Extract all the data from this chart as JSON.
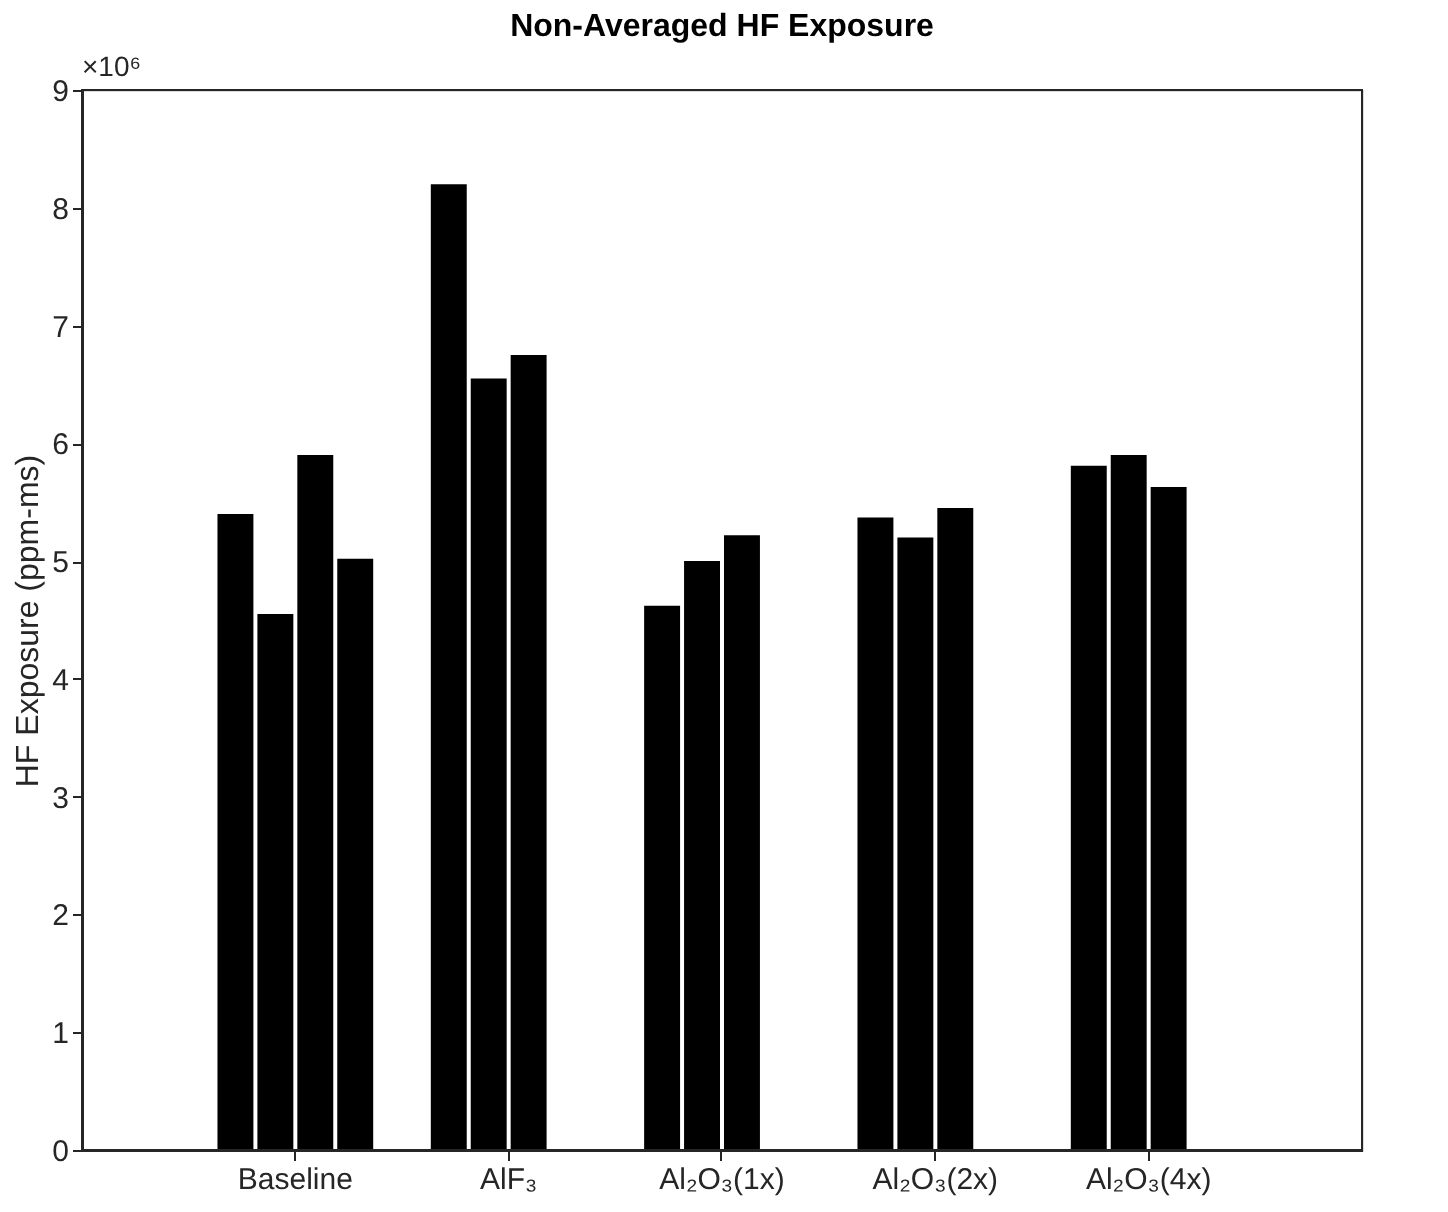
{
  "chart_data": {
    "type": "bar",
    "title": "Non-Averaged HF Exposure",
    "ylabel": "HF Exposure (ppm-ms)",
    "categories": [
      "Baseline",
      "AlF₃",
      "Al₂O₃(1x)",
      "Al₂O₃(2x)",
      "Al₂O₃(4x)"
    ],
    "series": [
      {
        "color": "#000000",
        "values": [
          5.4,
          8.2,
          4.62,
          5.37,
          5.81
        ]
      },
      {
        "color": "#000000",
        "values": [
          4.55,
          6.55,
          5.0,
          5.2,
          5.9
        ]
      },
      {
        "color": "#000000",
        "values": [
          5.9,
          6.75,
          5.22,
          5.45,
          5.63
        ]
      },
      {
        "color": "#000000",
        "values": [
          5.02,
          null,
          null,
          null,
          null
        ]
      }
    ],
    "ylim": [
      0,
      9
    ],
    "yticks": [
      0,
      1,
      2,
      3,
      4,
      5,
      6,
      7,
      8,
      9
    ],
    "annotations": [
      "×10⁶"
    ],
    "grid": false
  }
}
